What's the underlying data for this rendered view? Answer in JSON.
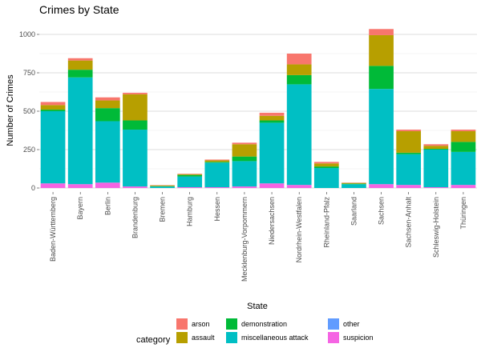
{
  "chart_data": {
    "type": "bar",
    "stacked": true,
    "title": "Crimes by State",
    "xlabel": "State",
    "ylabel": "Number of Crimes",
    "ylim": [
      0,
      1050
    ],
    "yticks": [
      0,
      250,
      500,
      750,
      1000
    ],
    "grid": true,
    "legend": {
      "title": "category",
      "placement": "bottom"
    },
    "categories": [
      "Baden-Württemberg",
      "Bayern",
      "Berlin",
      "Brandenburg",
      "Bremen",
      "Hamburg",
      "Hessen",
      "Mecklenburg-Vorpommern",
      "Niedersachsen",
      "Nordrhein-Westfalen",
      "Rheinland-Pfalz",
      "Saarland",
      "Sachsen",
      "Sachsen-Anhalt",
      "Schleswig-Holstein",
      "Thüringen"
    ],
    "stack_order": [
      "suspicion",
      "other",
      "miscellaneous attack",
      "demonstration",
      "assault",
      "arson"
    ],
    "series": [
      {
        "name": "arson",
        "color": "#F8766D",
        "values": [
          20,
          15,
          20,
          10,
          2,
          3,
          5,
          10,
          20,
          70,
          10,
          2,
          40,
          10,
          10,
          10
        ]
      },
      {
        "name": "assault",
        "color": "#B79F00",
        "values": [
          30,
          60,
          50,
          170,
          5,
          5,
          10,
          80,
          30,
          70,
          20,
          5,
          200,
          140,
          20,
          70
        ]
      },
      {
        "name": "demonstration",
        "color": "#00BA38",
        "values": [
          10,
          50,
          85,
          60,
          2,
          10,
          5,
          30,
          15,
          60,
          10,
          3,
          150,
          10,
          5,
          65
        ]
      },
      {
        "name": "miscellaneous attack",
        "color": "#00BFC4",
        "values": [
          470,
          695,
          400,
          370,
          10,
          70,
          160,
          165,
          395,
          655,
          130,
          25,
          620,
          200,
          245,
          215
        ]
      },
      {
        "name": "other",
        "color": "#619CFF",
        "values": [
          0,
          0,
          0,
          0,
          0,
          0,
          0,
          0,
          0,
          0,
          0,
          0,
          0,
          0,
          0,
          0
        ]
      },
      {
        "name": "suspicion",
        "color": "#F564E3",
        "values": [
          30,
          25,
          35,
          10,
          0,
          5,
          5,
          10,
          30,
          20,
          0,
          0,
          25,
          20,
          5,
          20
        ]
      }
    ],
    "legend_order": [
      "arson",
      "assault",
      "demonstration",
      "miscellaneous attack",
      "other",
      "suspicion"
    ]
  }
}
